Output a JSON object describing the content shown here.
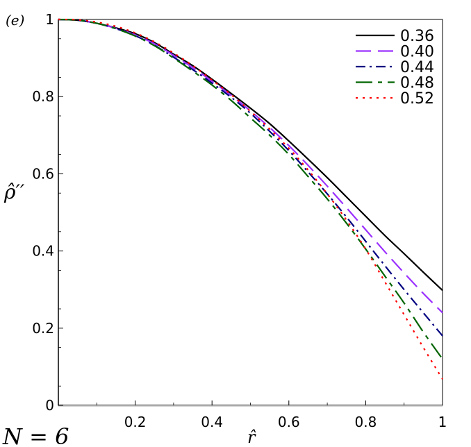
{
  "chart_data": {
    "type": "line",
    "panel_label": "(e)",
    "annotation": "N = 6",
    "xlabel": "r̂",
    "ylabel": "ρ̂′′",
    "xlim": [
      0,
      1
    ],
    "ylim": [
      0,
      1
    ],
    "x_ticks": [
      0.2,
      0.4,
      0.6,
      0.8,
      1
    ],
    "x_tick_labels": [
      "0.2",
      "0.4",
      "0.6",
      "0.8",
      "1"
    ],
    "y_ticks": [
      0,
      0.2,
      0.4,
      0.6,
      0.8,
      1
    ],
    "y_tick_labels": [
      "0",
      "0.2",
      "0.4",
      "0.6",
      "0.8",
      "1"
    ],
    "legend_position": "top-right",
    "x": [
      0,
      0.05,
      0.1,
      0.15,
      0.2,
      0.25,
      0.3,
      0.35,
      0.4,
      0.45,
      0.5,
      0.55,
      0.6,
      0.65,
      0.7,
      0.75,
      0.8,
      0.85,
      0.9,
      0.95,
      1
    ],
    "series": [
      {
        "name": "0.36",
        "color": "#000000",
        "dash": "solid",
        "values": [
          1,
          0.998,
          0.99,
          0.978,
          0.963,
          0.94,
          0.91,
          0.88,
          0.845,
          0.808,
          0.77,
          0.73,
          0.685,
          0.638,
          0.59,
          0.54,
          0.49,
          0.44,
          0.393,
          0.345,
          0.298
        ]
      },
      {
        "name": "0.40",
        "color": "#9b30ff",
        "dash": "long-dash",
        "values": [
          1,
          0.998,
          0.99,
          0.977,
          0.96,
          0.937,
          0.907,
          0.875,
          0.84,
          0.803,
          0.763,
          0.72,
          0.673,
          0.622,
          0.568,
          0.512,
          0.455,
          0.398,
          0.343,
          0.29,
          0.24
        ]
      },
      {
        "name": "0.44",
        "color": "#000080",
        "dash": "dash-dot",
        "values": [
          1,
          0.998,
          0.99,
          0.976,
          0.958,
          0.933,
          0.902,
          0.87,
          0.835,
          0.798,
          0.757,
          0.71,
          0.66,
          0.605,
          0.548,
          0.488,
          0.425,
          0.362,
          0.3,
          0.24,
          0.18
        ]
      },
      {
        "name": "0.48",
        "color": "#006400",
        "dash": "long-dash-short",
        "values": [
          1,
          0.998,
          0.99,
          0.976,
          0.957,
          0.932,
          0.9,
          0.866,
          0.83,
          0.79,
          0.745,
          0.7,
          0.65,
          0.593,
          0.535,
          0.472,
          0.405,
          0.335,
          0.265,
          0.19,
          0.12
        ]
      },
      {
        "name": "0.52",
        "color": "#ff0000",
        "dash": "dotted",
        "values": [
          1,
          0.999,
          0.993,
          0.982,
          0.965,
          0.942,
          0.913,
          0.88,
          0.843,
          0.805,
          0.762,
          0.716,
          0.666,
          0.61,
          0.548,
          0.48,
          0.405,
          0.32,
          0.235,
          0.15,
          0.068
        ]
      }
    ]
  }
}
